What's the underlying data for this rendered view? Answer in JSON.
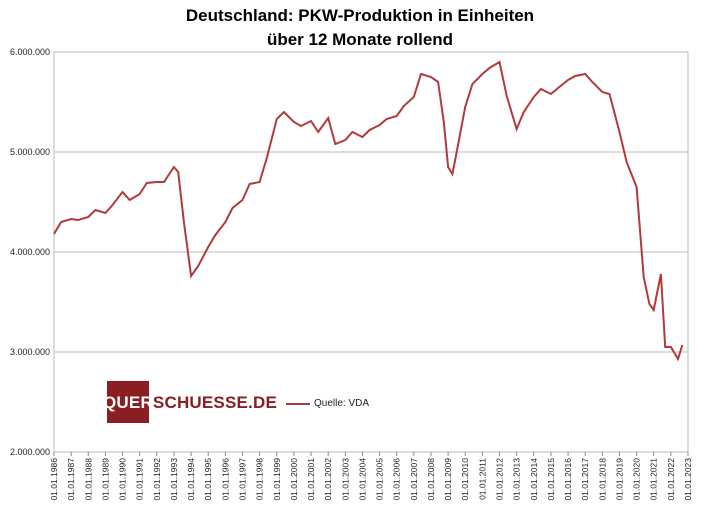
{
  "chart_data": {
    "type": "line",
    "title": [
      "Deutschland: PKW-Produktion in Einheiten",
      "über 12 Monate rollend"
    ],
    "xlabel": "",
    "ylabel": "",
    "ylim": [
      2000000,
      6000000
    ],
    "yticks": [
      "2.000.000",
      "3.000.000",
      "4.000.000",
      "5.000.000",
      "6.000.000"
    ],
    "yticks_values": [
      2000000,
      3000000,
      4000000,
      5000000,
      6000000
    ],
    "xticks": [
      "01.01.1986",
      "01.01.1987",
      "01.01.1988",
      "01.01.1989",
      "01.01.1990",
      "01.01.1991",
      "01.01.1992",
      "01.01.1993",
      "01.01.1994",
      "01.01.1995",
      "01.01.1996",
      "01.01.1997",
      "01.01.1998",
      "01.01.1999",
      "01.01.2000",
      "01.01.2001",
      "01.01.2002",
      "01.01.2003",
      "01.01.2004",
      "01.01.2005",
      "01.01.2006",
      "01.01.2007",
      "01.01.2008",
      "01.01.2009",
      "01.01.2010",
      "01.01.2011",
      "01.01.2012",
      "01.01.2013",
      "01.01.2014",
      "01.01.2015",
      "01.01.2016",
      "01.01.2017",
      "01.01.2018",
      "01.01.2019",
      "01.01.2020",
      "01.01.2021",
      "01.01.2022",
      "01.01.2023"
    ],
    "grid": "horizontal",
    "legend_position": "center",
    "series": [
      {
        "name": "Quelle: VDA",
        "color": "#b13b3b",
        "x": [
          "1986-01",
          "1986-06",
          "1987-01",
          "1987-06",
          "1988-01",
          "1988-06",
          "1989-01",
          "1989-06",
          "1990-01",
          "1990-06",
          "1991-01",
          "1991-06",
          "1992-01",
          "1992-06",
          "1993-01",
          "1993-04",
          "1993-08",
          "1994-01",
          "1994-06",
          "1995-01",
          "1995-06",
          "1996-01",
          "1996-06",
          "1997-01",
          "1997-06",
          "1998-01",
          "1998-06",
          "1999-01",
          "1999-06",
          "2000-01",
          "2000-06",
          "2001-01",
          "2001-06",
          "2002-01",
          "2002-06",
          "2003-01",
          "2003-06",
          "2004-01",
          "2004-06",
          "2005-01",
          "2005-06",
          "2006-01",
          "2006-06",
          "2007-01",
          "2007-06",
          "2008-01",
          "2008-06",
          "2008-10",
          "2009-01",
          "2009-04",
          "2009-07",
          "2010-01",
          "2010-06",
          "2011-01",
          "2011-06",
          "2012-01",
          "2012-06",
          "2013-01",
          "2013-06",
          "2014-01",
          "2014-06",
          "2015-01",
          "2015-06",
          "2016-01",
          "2016-06",
          "2017-01",
          "2017-06",
          "2018-01",
          "2018-06",
          "2019-01",
          "2019-06",
          "2020-01",
          "2020-06",
          "2020-10",
          "2021-01",
          "2021-06",
          "2021-09",
          "2022-01",
          "2022-06",
          "2022-09"
        ],
        "values": [
          4180000,
          4300000,
          4330000,
          4320000,
          4350000,
          4420000,
          4390000,
          4470000,
          4600000,
          4520000,
          4580000,
          4690000,
          4700000,
          4700000,
          4850000,
          4800000,
          4300000,
          3760000,
          3860000,
          4050000,
          4170000,
          4300000,
          4440000,
          4520000,
          4680000,
          4700000,
          4940000,
          5330000,
          5400000,
          5300000,
          5260000,
          5310000,
          5200000,
          5340000,
          5080000,
          5120000,
          5200000,
          5150000,
          5220000,
          5270000,
          5330000,
          5360000,
          5460000,
          5550000,
          5780000,
          5750000,
          5700000,
          5300000,
          4850000,
          4780000,
          5000000,
          5450000,
          5680000,
          5780000,
          5840000,
          5900000,
          5560000,
          5230000,
          5400000,
          5550000,
          5630000,
          5580000,
          5640000,
          5720000,
          5760000,
          5780000,
          5700000,
          5600000,
          5580000,
          5200000,
          4900000,
          4650000,
          3750000,
          3480000,
          3420000,
          3780000,
          3050000,
          3050000,
          2930000,
          3070000
        ]
      }
    ]
  },
  "logo": {
    "part_a": "QUER",
    "part_b": "SCHUESSE.DE"
  }
}
